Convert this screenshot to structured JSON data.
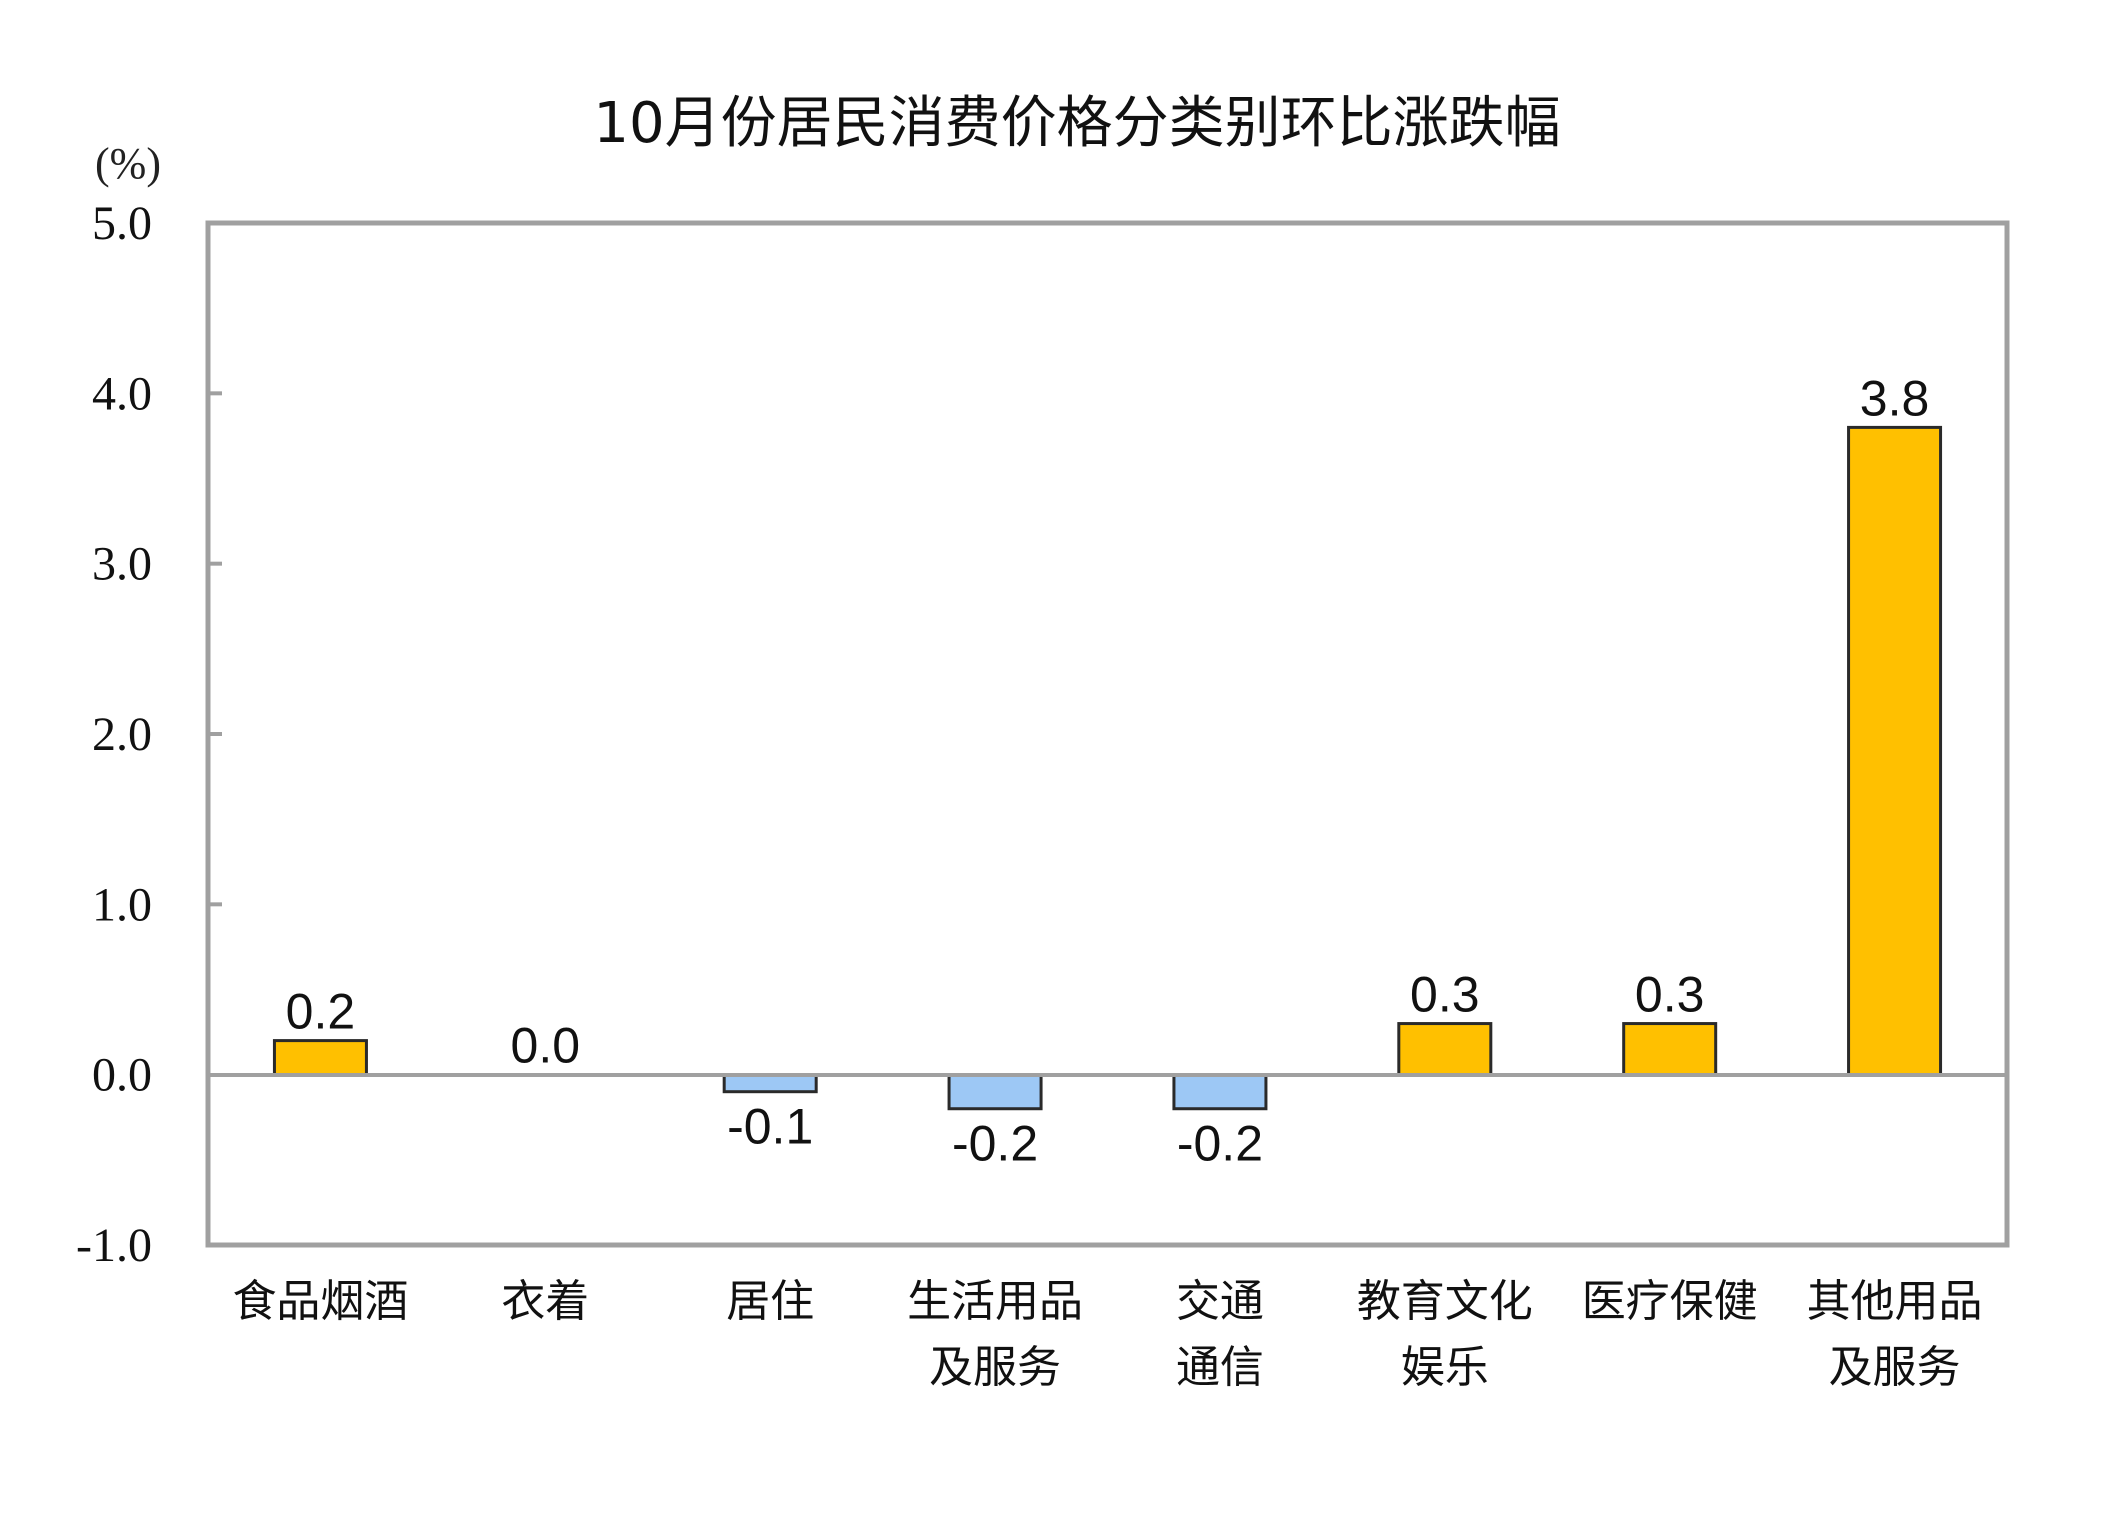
{
  "chart_data": {
    "type": "bar",
    "title": "10月份居民消费价格分类别环比涨跌幅",
    "unit_label": "(%)",
    "xlabel": "",
    "ylabel": "(%)",
    "ylim": [
      -1.0,
      5.0
    ],
    "yticks": [
      "5.0",
      "4.0",
      "3.0",
      "2.0",
      "1.0",
      "0.0",
      "-1.0"
    ],
    "ytick_values": [
      5.0,
      4.0,
      3.0,
      2.0,
      1.0,
      0.0,
      -1.0
    ],
    "grid": false,
    "legend": null,
    "categories": [
      [
        "食品烟酒"
      ],
      [
        "衣着"
      ],
      [
        "居住"
      ],
      [
        "生活用品",
        "及服务"
      ],
      [
        "交通",
        "通信"
      ],
      [
        "教育文化",
        "娱乐"
      ],
      [
        "医疗保健"
      ],
      [
        "其他用品",
        "及服务"
      ]
    ],
    "values": [
      0.2,
      0.0,
      -0.1,
      -0.2,
      -0.2,
      0.3,
      0.3,
      3.8
    ],
    "value_labels": [
      "0.2",
      "0.0",
      "-0.1",
      "-0.2",
      "-0.2",
      "0.3",
      "0.3",
      "3.8"
    ],
    "colors": {
      "positive": "#FFC000",
      "negative": "#9DC8F5",
      "bar_border": "#2a2a2a",
      "axis": "#A0A0A0",
      "text": "#111111"
    }
  }
}
